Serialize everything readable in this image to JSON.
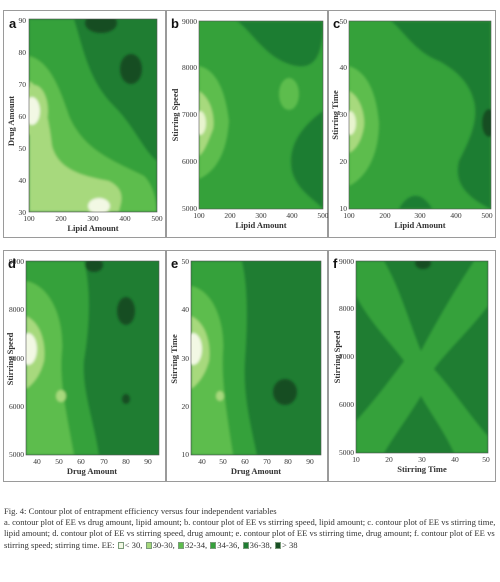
{
  "colors": {
    "lt30": "#f2f8e4",
    "c30_30": "#a7d97d",
    "c32_34": "#5dbd4d",
    "c34_36": "#35a13a",
    "c36_38": "#1f7d32",
    "gt38": "#174e24"
  },
  "caption": {
    "title": "Fig. 4: Contour plot of entrapment efficiency versus four independent variables",
    "description": "a. contour plot of EE vs drug amount, lipid amount; b. contour plot of EE vs stirring speed, lipid amount; c. contour plot of EE vs stirring time, lipid amount; d. contour plot of EE vs stirring speed, drug amount; e. contour plot of EE vs stirring time, drug amount; f. contour plot of EE vs stirring speed; stirring time. EE:",
    "legend": [
      {
        "label": "< 30,",
        "color": "#f2f8e4"
      },
      {
        "label": "30-30,",
        "color": "#a7d97d"
      },
      {
        "label": "32-34,",
        "color": "#5dbd4d"
      },
      {
        "label": "34-36,",
        "color": "#35a13a"
      },
      {
        "label": "36-38,",
        "color": "#1f7d32"
      },
      {
        "label": "> 38",
        "color": "#174e24"
      }
    ]
  },
  "chart_data": [
    {
      "panel": "a",
      "type": "heatmap",
      "xlabel": "Lipid Amount",
      "ylabel": "Drug Amount",
      "xlim": [
        100,
        500
      ],
      "ylim": [
        30,
        90
      ],
      "xticks": [
        "100",
        "200",
        "300",
        "400",
        "500"
      ],
      "yticks": [
        "30",
        "40",
        "50",
        "60",
        "70",
        "80",
        "90"
      ],
      "regions": [
        {
          "level": "gt38",
          "x": 330,
          "y": 78
        },
        {
          "level": "gt38",
          "x": 280,
          "y": 89
        },
        {
          "level": "lt30",
          "x": 105,
          "y": 63
        },
        {
          "level": "lt30",
          "x": 295,
          "y": 34
        }
      ]
    },
    {
      "panel": "b",
      "type": "heatmap",
      "xlabel": "Lipid Amount",
      "ylabel": "Stirring Speed",
      "xlim": [
        100,
        500
      ],
      "ylim": [
        5000,
        9000
      ],
      "xticks": [
        "100",
        "200",
        "300",
        "400",
        "500"
      ],
      "yticks": [
        "5000",
        "6000",
        "7000",
        "8000",
        "9000"
      ],
      "regions": [
        {
          "level": "c30_30",
          "x": 110,
          "y": 7000
        }
      ]
    },
    {
      "panel": "c",
      "type": "heatmap",
      "xlabel": "Lipid Amount",
      "ylabel": "Stirring Time",
      "xlim": [
        100,
        500
      ],
      "ylim": [
        10,
        50
      ],
      "xticks": [
        "100",
        "200",
        "300",
        "400",
        "500"
      ],
      "yticks": [
        "10",
        "20",
        "30",
        "40",
        "50"
      ],
      "regions": [
        {
          "level": "gt38",
          "x": 490,
          "y": 30
        },
        {
          "level": "c30_30",
          "x": 110,
          "y": 30
        }
      ]
    },
    {
      "panel": "d",
      "type": "heatmap",
      "xlabel": "Drug Amount",
      "ylabel": "Stirring Speed",
      "xlim": [
        35,
        95
      ],
      "ylim": [
        5000,
        9000
      ],
      "xticks": [
        "40",
        "50",
        "60",
        "70",
        "80",
        "90"
      ],
      "yticks": [
        "5000",
        "6000",
        "7000",
        "8000",
        "9000"
      ],
      "regions": [
        {
          "level": "gt38",
          "x": 80,
          "y": 7500
        },
        {
          "level": "lt30",
          "x": 36,
          "y": 7000
        }
      ]
    },
    {
      "panel": "e",
      "type": "heatmap",
      "xlabel": "Drug Amount",
      "ylabel": "Stirring Time",
      "xlim": [
        35,
        95
      ],
      "ylim": [
        10,
        50
      ],
      "xticks": [
        "40",
        "50",
        "60",
        "70",
        "80",
        "90"
      ],
      "yticks": [
        "10",
        "20",
        "30",
        "40",
        "50"
      ],
      "regions": [
        {
          "level": "gt38",
          "x": 82,
          "y": 20
        },
        {
          "level": "lt30",
          "x": 36,
          "y": 30
        }
      ]
    },
    {
      "panel": "f",
      "type": "heatmap",
      "xlabel": "Stirring Time",
      "ylabel": "Stirring Speed",
      "xlim": [
        10,
        50
      ],
      "ylim": [
        5000,
        9000
      ],
      "xticks": [
        "10",
        "20",
        "30",
        "40",
        "50"
      ],
      "yticks": [
        "5000",
        "6000",
        "7000",
        "8000",
        "9000"
      ],
      "regions": [
        {
          "level": "c34_36",
          "x": 30,
          "y": 7000
        }
      ]
    }
  ]
}
